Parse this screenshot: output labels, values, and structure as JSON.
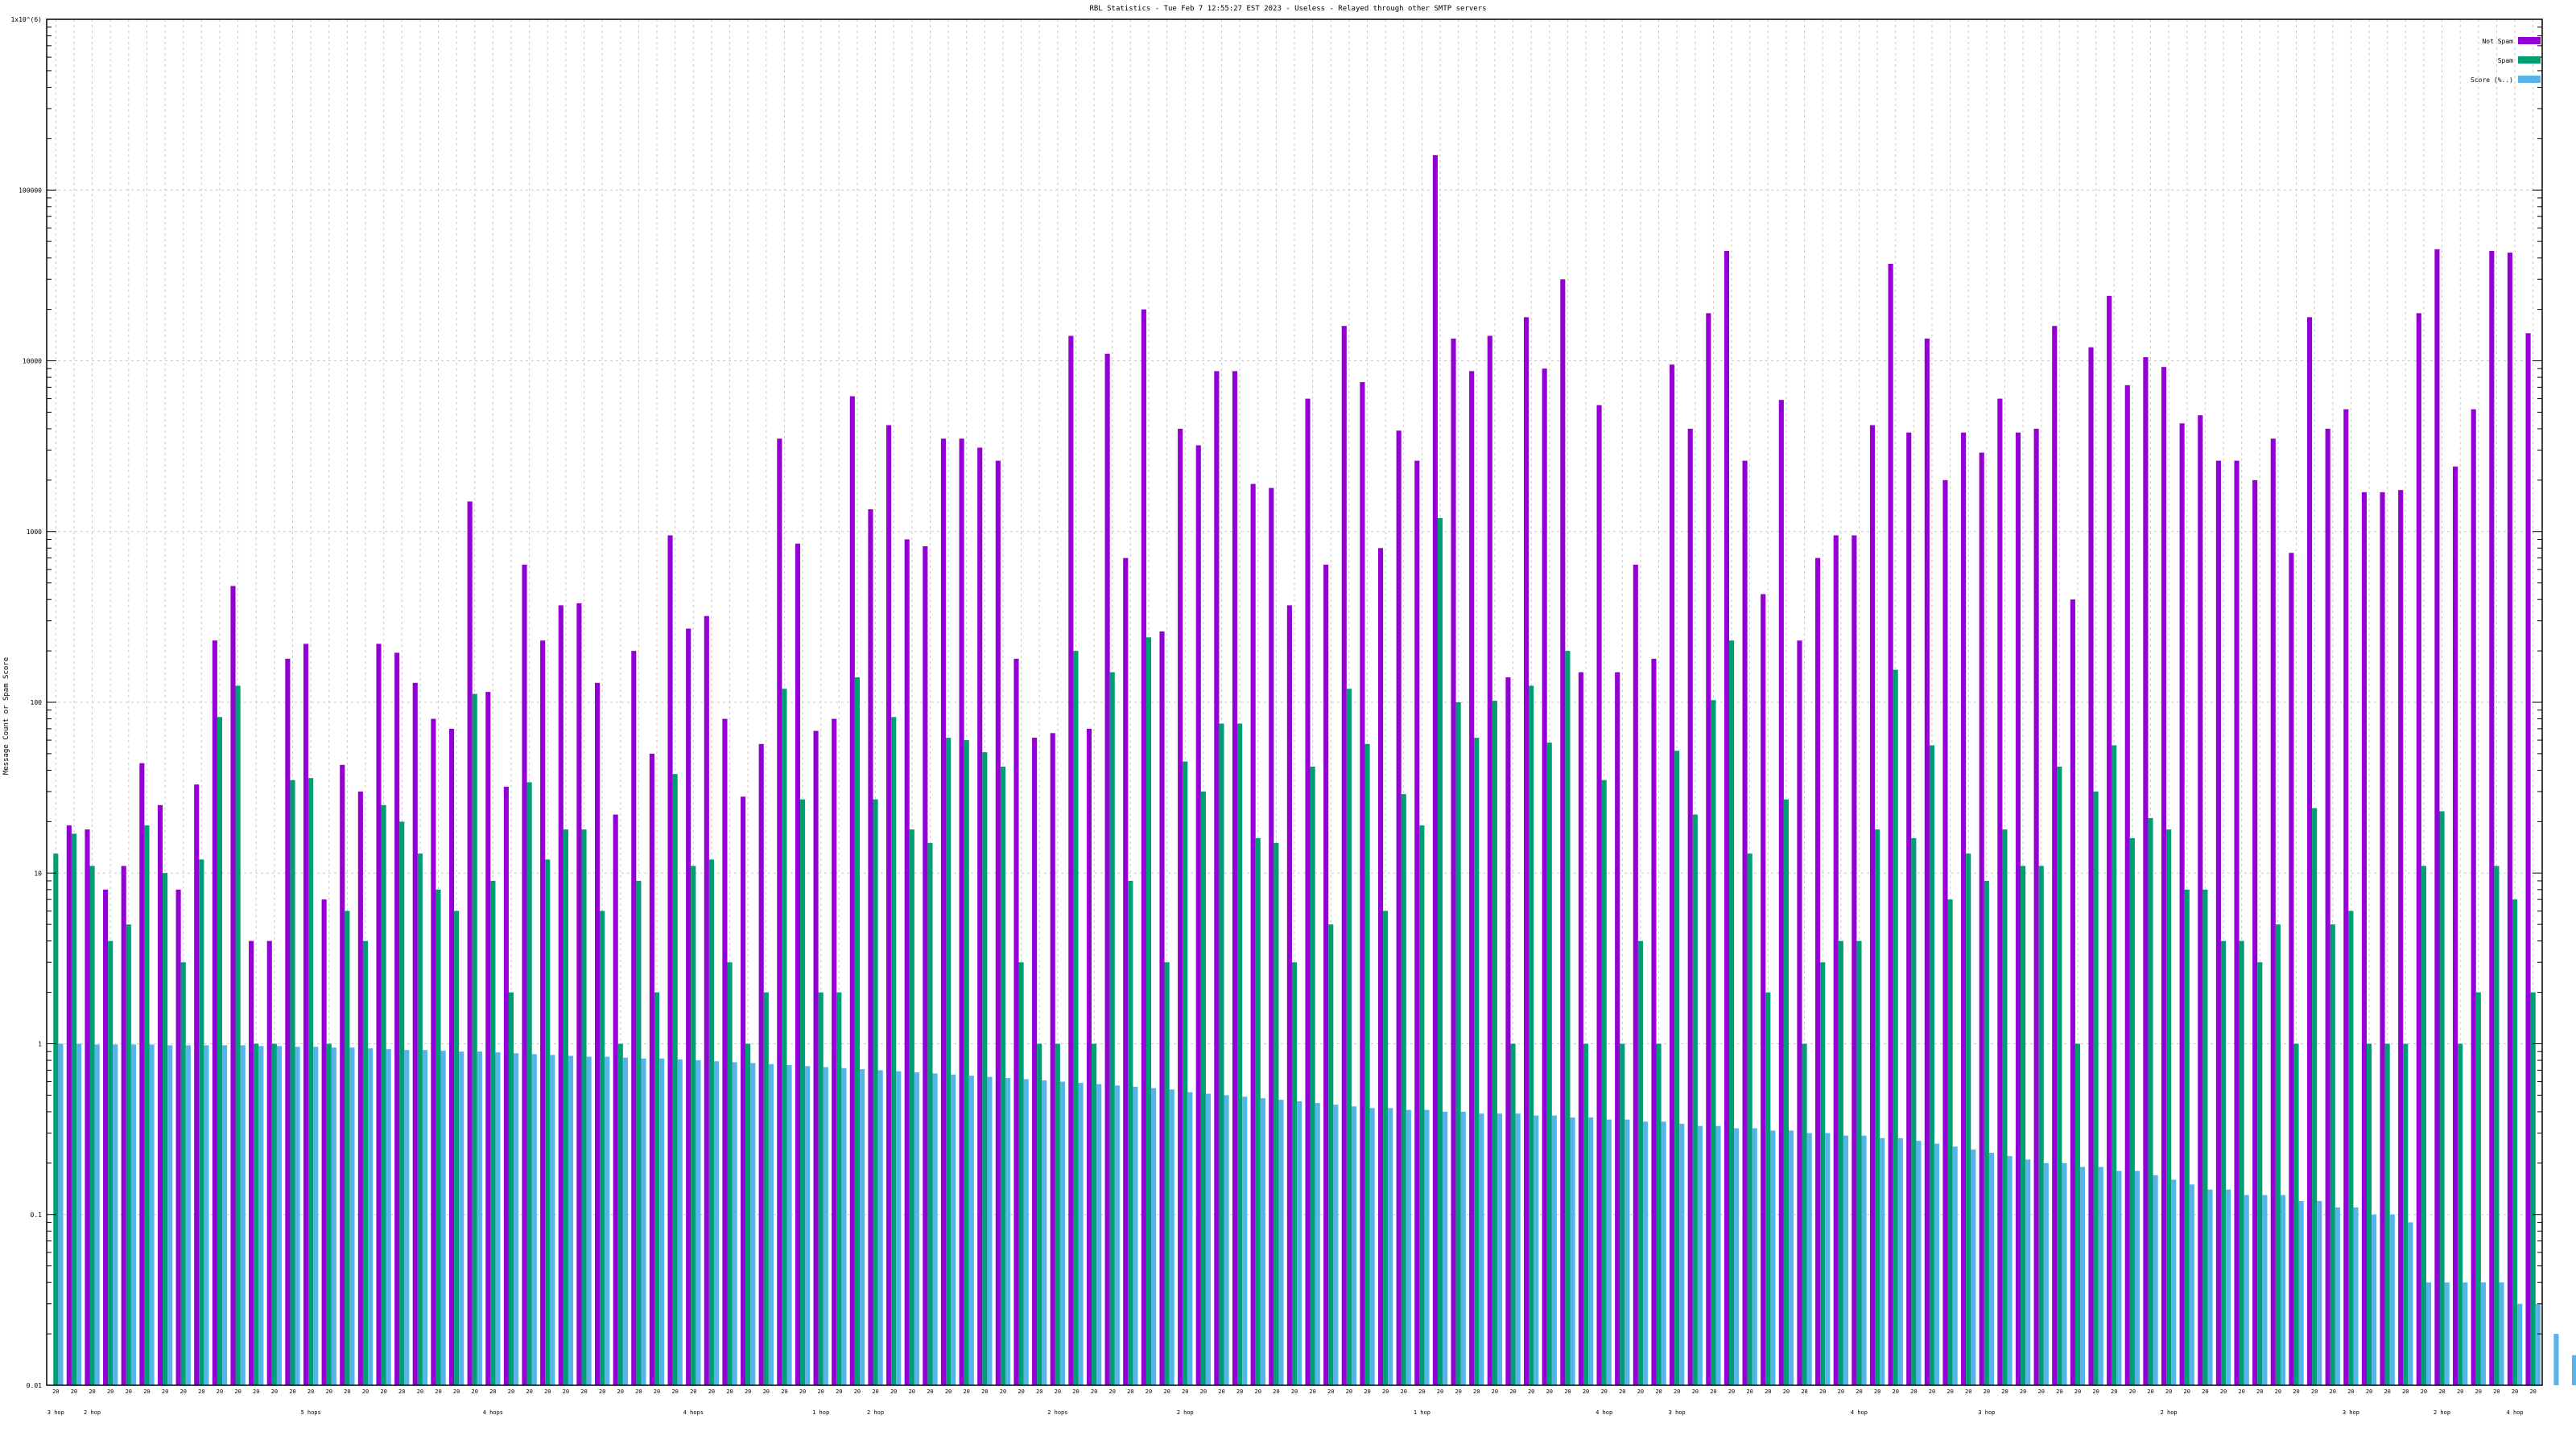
{
  "chart_data": {
    "type": "bar",
    "title": "RBL Statistics - Tue Feb  7 12:55:27 EST 2023 - Useless - Relayed through other SMTP servers",
    "ylabel": "Message Count or Spam Score",
    "xlabel": "",
    "y_scale": "log",
    "ylim": [
      0.01,
      1000000
    ],
    "y_ticks": [
      "0.01",
      "0.1",
      "1",
      "10",
      "100",
      "1000",
      "10000",
      "100000",
      "1e+06"
    ],
    "y_tick_labels": [
      "0.01",
      "0.1",
      "1",
      "10",
      "100",
      "1000",
      "10000",
      "100000",
      "1x10^(6)"
    ],
    "grid": true,
    "legend_position": "top-right",
    "colors": {
      "Not Spam": "#9400d3",
      "Spam": "#009e73",
      "Score (%..)": "#56b4e9"
    },
    "series": [
      {
        "name": "Not Spam",
        "values": [
          0,
          19,
          18,
          8,
          11,
          44,
          25,
          8,
          33,
          230,
          480,
          4,
          4,
          180,
          220,
          7,
          43,
          30,
          220,
          195,
          130,
          80,
          70,
          1500,
          115,
          32,
          640,
          230,
          370,
          380,
          130,
          22,
          200,
          50,
          950,
          270,
          320,
          80,
          28,
          57,
          3500,
          850,
          68,
          80,
          6200,
          1350,
          4200,
          900,
          820,
          3500,
          3500,
          3100,
          2600,
          180,
          62,
          66,
          14000,
          70,
          11000,
          700,
          20000,
          260,
          4000,
          3200,
          8700,
          8700,
          1900,
          1800,
          370,
          6000,
          640,
          16000,
          7500,
          800,
          3900,
          2600,
          160000,
          13500,
          8700,
          14000,
          140,
          18000,
          9000,
          30000,
          150,
          5500,
          150,
          640,
          180,
          9500,
          4000,
          19000,
          44000,
          2600,
          430,
          5900,
          230,
          700,
          950,
          950,
          4200,
          37000,
          3800,
          13500,
          2000,
          3800,
          2900,
          6000,
          3800,
          4000,
          16000,
          400,
          12000,
          24000,
          7200,
          10500,
          9200,
          4300,
          4800,
          2600,
          2600,
          2000,
          3500,
          750,
          18000,
          4000,
          5200,
          1700,
          1700,
          1750,
          19000,
          45000,
          2400,
          5200,
          44000,
          43000,
          14500
        ]
      },
      {
        "name": "Spam",
        "values": [
          13,
          17,
          11,
          4,
          5,
          19,
          10,
          3,
          12,
          82,
          125,
          1,
          1,
          35,
          36,
          1,
          6,
          4,
          25,
          20,
          13,
          8,
          6,
          112,
          9,
          2,
          34,
          12,
          18,
          18,
          6,
          1,
          9,
          2,
          38,
          11,
          12,
          3,
          1,
          2,
          120,
          27,
          2,
          2,
          140,
          27,
          82,
          18,
          15,
          62,
          60,
          51,
          42,
          3,
          1,
          1,
          200,
          1,
          150,
          9,
          240,
          3,
          45,
          30,
          75,
          75,
          16,
          15,
          3,
          42,
          5,
          120,
          57,
          6,
          29,
          19,
          1200,
          100,
          62,
          102,
          1,
          125,
          58,
          200,
          1,
          35,
          1,
          4,
          1,
          52,
          22,
          103,
          230,
          13,
          2,
          27,
          1,
          3,
          4,
          4,
          18,
          155,
          16,
          56,
          7,
          13,
          9,
          18,
          11,
          11,
          42,
          1,
          30,
          56,
          16,
          21,
          18,
          8,
          8,
          4,
          4,
          3,
          5,
          1,
          24,
          5,
          6,
          1,
          1,
          1,
          11,
          23,
          1,
          2,
          11,
          7,
          2
        ]
      },
      {
        "name": "Score (%..)",
        "values": [
          1.0,
          1.0,
          0.99,
          0.99,
          0.99,
          0.99,
          0.98,
          0.98,
          0.98,
          0.98,
          0.98,
          0.97,
          0.97,
          0.96,
          0.96,
          0.95,
          0.95,
          0.94,
          0.93,
          0.92,
          0.92,
          0.91,
          0.9,
          0.9,
          0.89,
          0.88,
          0.87,
          0.86,
          0.85,
          0.84,
          0.84,
          0.83,
          0.82,
          0.82,
          0.81,
          0.8,
          0.79,
          0.78,
          0.77,
          0.76,
          0.75,
          0.74,
          0.73,
          0.72,
          0.71,
          0.7,
          0.69,
          0.68,
          0.67,
          0.66,
          0.65,
          0.64,
          0.63,
          0.62,
          0.61,
          0.6,
          0.59,
          0.58,
          0.57,
          0.56,
          0.55,
          0.54,
          0.52,
          0.51,
          0.5,
          0.49,
          0.48,
          0.47,
          0.46,
          0.45,
          0.44,
          0.43,
          0.42,
          0.42,
          0.41,
          0.41,
          0.4,
          0.4,
          0.39,
          0.39,
          0.39,
          0.38,
          0.38,
          0.37,
          0.37,
          0.36,
          0.36,
          0.35,
          0.35,
          0.34,
          0.33,
          0.33,
          0.32,
          0.32,
          0.31,
          0.31,
          0.3,
          0.3,
          0.29,
          0.29,
          0.28,
          0.28,
          0.27,
          0.26,
          0.25,
          0.24,
          0.23,
          0.22,
          0.21,
          0.2,
          0.2,
          0.19,
          0.19,
          0.18,
          0.18,
          0.17,
          0.16,
          0.15,
          0.14,
          0.14,
          0.13,
          0.13,
          0.13,
          0.12,
          0.12,
          0.11,
          0.11,
          0.1,
          0.1,
          0.09,
          0.04,
          0.04,
          0.04,
          0.04,
          0.04,
          0.03,
          0.03,
          0.02,
          0.015,
          0.01
        ]
      }
    ],
    "x_top_labels": [
      "20",
      "20",
      "20",
      "20",
      "20",
      "20",
      "20",
      "20",
      "20",
      "20",
      "20",
      "20",
      "20",
      "20",
      "20",
      "20",
      "20",
      "20",
      "20",
      "20",
      "20",
      "20",
      "20",
      "20",
      "20",
      "20",
      "20",
      "20",
      "20",
      "20",
      "20",
      "20",
      "20",
      "20",
      "20",
      "20",
      "20",
      "20",
      "20",
      "20",
      "20",
      "20",
      "20",
      "20",
      "20",
      "20",
      "20",
      "20",
      "20",
      "20",
      "20",
      "20",
      "20",
      "20",
      "20",
      "20",
      "20",
      "20",
      "20",
      "20",
      "20",
      "20",
      "20",
      "20",
      "20",
      "20",
      "20",
      "20",
      "20",
      "20",
      "20",
      "20",
      "20",
      "20",
      "20",
      "20",
      "20",
      "20",
      "20",
      "20",
      "20",
      "20",
      "20",
      "20",
      "20",
      "20",
      "20",
      "20",
      "20",
      "20",
      "20",
      "20",
      "20",
      "20",
      "20",
      "20",
      "20",
      "20",
      "20",
      "20",
      "20",
      "20",
      "20",
      "20",
      "20",
      "20",
      "20",
      "20",
      "20",
      "20",
      "20",
      "20",
      "20",
      "20",
      "20",
      "20",
      "20",
      "20",
      "20",
      "20",
      "20",
      "20",
      "20",
      "20",
      "20",
      "20",
      "20",
      "20",
      "20",
      "20",
      "20",
      "20",
      "20",
      "20",
      "20",
      "20",
      "20"
    ],
    "x_hop_labels": [
      "3 hop",
      "",
      "2 hop",
      "",
      "",
      "",
      "",
      "",
      "",
      "",
      "",
      "",
      "",
      "",
      "5 hops",
      "",
      "",
      "",
      "",
      "",
      "",
      "",
      "",
      "",
      "4 hops",
      "",
      "",
      "",
      "",
      "",
      "",
      "",
      "",
      "",
      "",
      "4 hops",
      "",
      "",
      "",
      "",
      "",
      "",
      "1 hop",
      "",
      "",
      "2 hop",
      "",
      "",
      "",
      "",
      "",
      "",
      "",
      "",
      "",
      "2 hops",
      "",
      "",
      "",
      "",
      "",
      "",
      "2 hop",
      "",
      "",
      "",
      "",
      "",
      "",
      "",
      "",
      "",
      "",
      "",
      "",
      "1 hop",
      "",
      "",
      "",
      "",
      "",
      "",
      "",
      "",
      "",
      "4 hop",
      "",
      "",
      "",
      "3 hop",
      "",
      "",
      "",
      "",
      "",
      "",
      "",
      "",
      "",
      "4 hop",
      "",
      "",
      "",
      "",
      "",
      "",
      "3 hop",
      "",
      "",
      "",
      "",
      "",
      "",
      "",
      "",
      "",
      "2 hop",
      "",
      "",
      "",
      "",
      "",
      "",
      "",
      "",
      "",
      "3 hop",
      "",
      "",
      "",
      "",
      "2 hop",
      "",
      "",
      "",
      "4 hop",
      "",
      "",
      "",
      "",
      "",
      "3 hop",
      ""
    ]
  }
}
